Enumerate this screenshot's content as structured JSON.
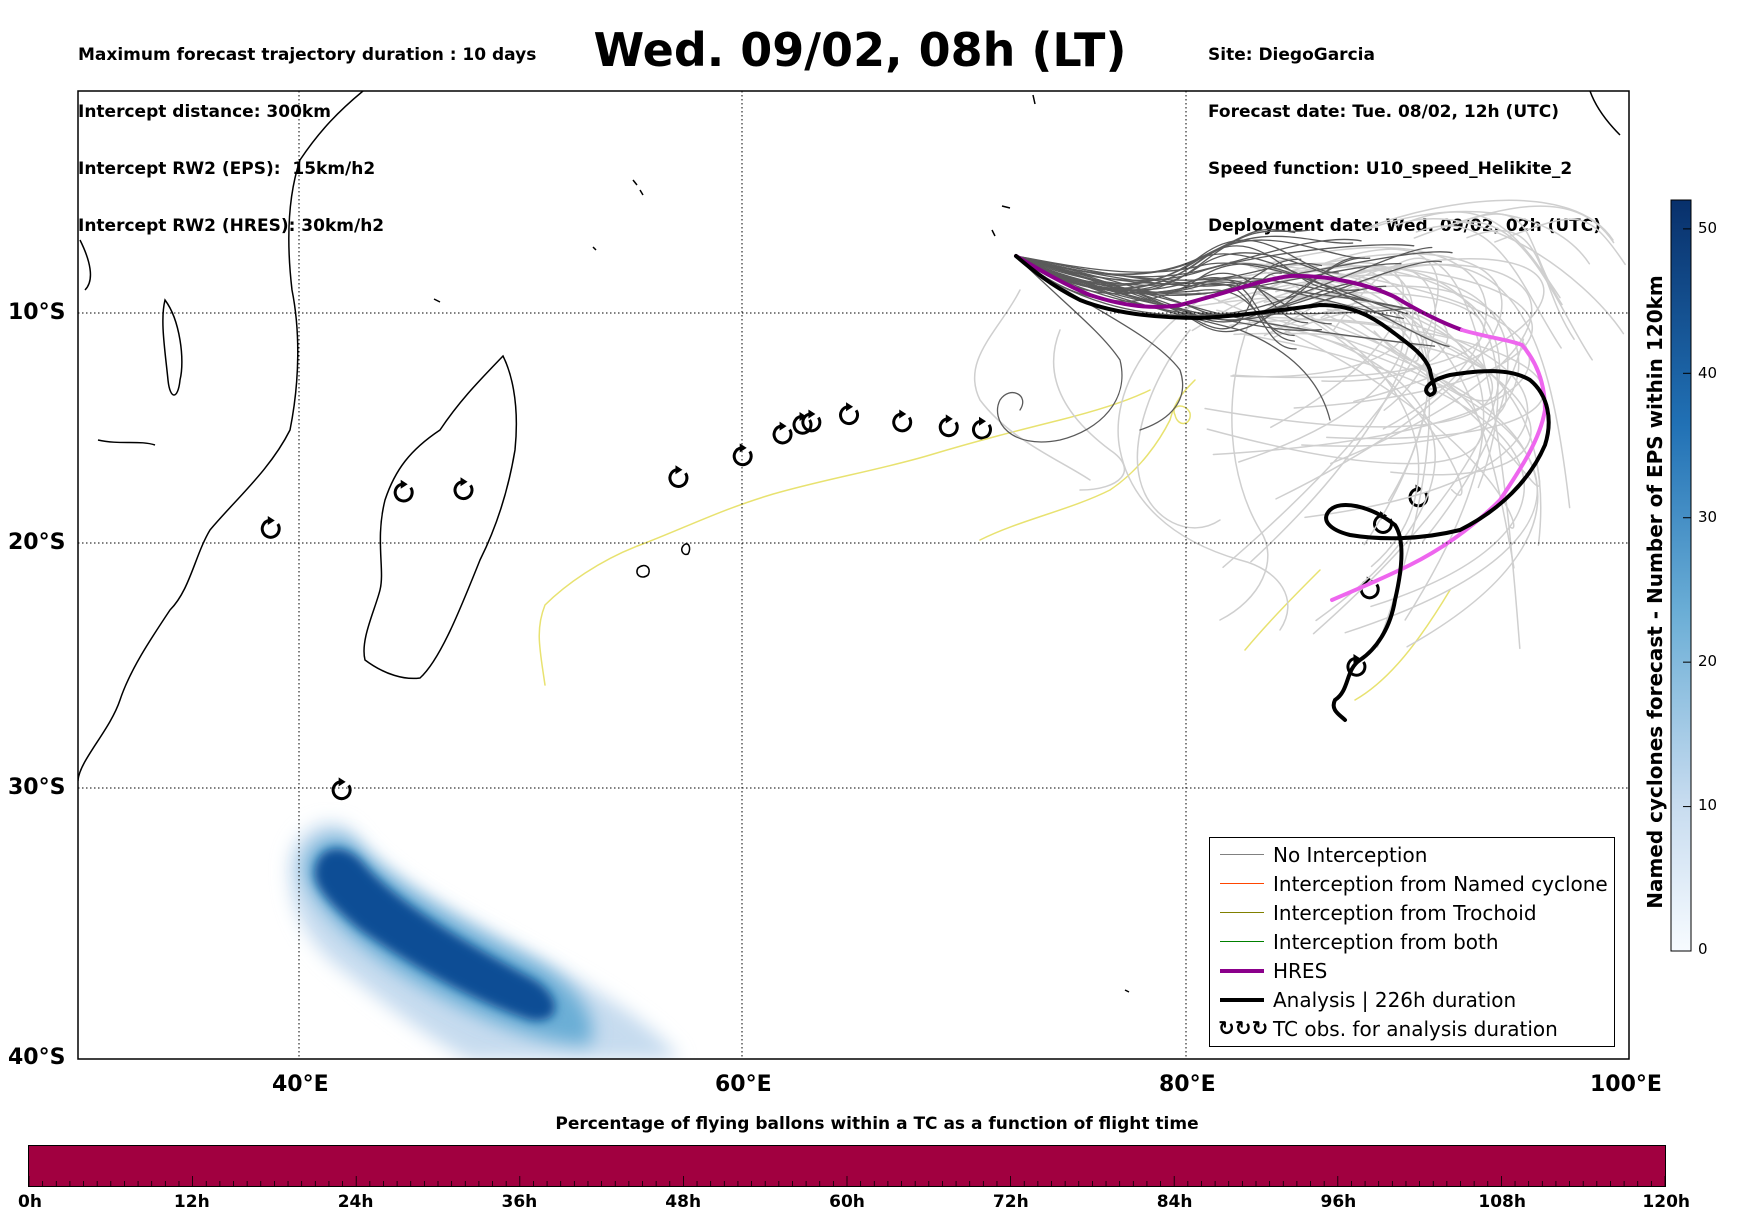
{
  "header_left": {
    "line1": "Maximum forecast trajectory duration : 10 days",
    "line2": "Intercept distance: 300km",
    "line3": "Intercept RW2 (EPS):  15km/h2",
    "line4": "Intercept RW2 (HRES): 30km/h2"
  },
  "title": "Wed. 09/02, 08h (LT)",
  "header_right": {
    "line1": "Site: DiegoGarcia",
    "line2": "Forecast date: Tue. 08/02, 12h (UTC)",
    "line3": "Speed function: U10_speed_Helikite_2",
    "line4": "Deployment date: Wed. 09/02, 02h (UTC)"
  },
  "map": {
    "lon_range": [
      30,
      100
    ],
    "lat_range": [
      -40,
      0
    ],
    "x_ticks": [
      "40°E",
      "60°E",
      "80°E",
      "100°E"
    ],
    "x_tick_values": [
      40,
      60,
      80,
      100
    ],
    "y_ticks": [
      "10°S",
      "20°S",
      "30°S",
      "40°S"
    ],
    "y_tick_values": [
      -10,
      -20,
      -30,
      -40
    ],
    "grid": "dotted",
    "tc_obs": [
      {
        "lon": 38.7,
        "lat": -18.1
      },
      {
        "lon": 44.7,
        "lat": -16.6
      },
      {
        "lon": 47.4,
        "lat": -16.5
      },
      {
        "lon": 57.1,
        "lat": -16.0
      },
      {
        "lon": 60.0,
        "lat": -15.1
      },
      {
        "lon": 61.8,
        "lat": -14.2
      },
      {
        "lon": 62.7,
        "lat": -13.8
      },
      {
        "lon": 63.1,
        "lat": -13.7
      },
      {
        "lon": 64.8,
        "lat": -13.4
      },
      {
        "lon": 67.2,
        "lat": -13.7
      },
      {
        "lon": 69.3,
        "lat": -13.9
      },
      {
        "lon": 70.8,
        "lat": -14.0
      },
      {
        "lon": 41.9,
        "lat": -28.9
      },
      {
        "lon": 87.7,
        "lat": -23.8
      },
      {
        "lon": 88.3,
        "lat": -20.6
      },
      {
        "lon": 88.9,
        "lat": -17.9
      },
      {
        "lon": 90.5,
        "lat": -16.8
      }
    ],
    "hres_color": "#8b008b",
    "hres_tail_color": "#ee66ee",
    "analysis_color": "#000000",
    "eps_near_color": "#5a5a5a",
    "eps_far_color": "#cfcfcf",
    "trochoid_color": "#e8e270"
  },
  "legend": {
    "items": [
      {
        "label": "No Interception",
        "color": "#808080",
        "width": 1
      },
      {
        "label": "Interception from Named cyclone",
        "color": "#ff4500",
        "width": 1
      },
      {
        "label": "Interception from Trochoid",
        "color": "#808000",
        "width": 1
      },
      {
        "label": "Interception from both",
        "color": "#008000",
        "width": 1
      },
      {
        "label": "HRES",
        "color": "#8b008b",
        "width": 4
      },
      {
        "label": "Analysis | 226h duration",
        "color": "#000000",
        "width": 4
      },
      {
        "label": "TC obs. for analysis duration",
        "color": "#000000",
        "width": 0,
        "symbol": "↻↻↻"
      }
    ]
  },
  "colorbar": {
    "title": "Named cyclones forecast - Number of EPS within 120km",
    "ticks": [
      "0",
      "10",
      "20",
      "30",
      "40",
      "50"
    ],
    "tick_values": [
      0,
      10,
      20,
      30,
      40,
      50
    ],
    "max": 52,
    "colormap": "Blues"
  },
  "flight_bar": {
    "title": "Percentage of flying ballons within a TC as a function of flight time",
    "color": "#a10040",
    "ticks": [
      "0h",
      "12h",
      "24h",
      "36h",
      "48h",
      "60h",
      "72h",
      "84h",
      "96h",
      "108h",
      "120h"
    ],
    "tick_values": [
      0,
      12,
      24,
      36,
      48,
      60,
      72,
      84,
      96,
      108,
      120
    ]
  }
}
